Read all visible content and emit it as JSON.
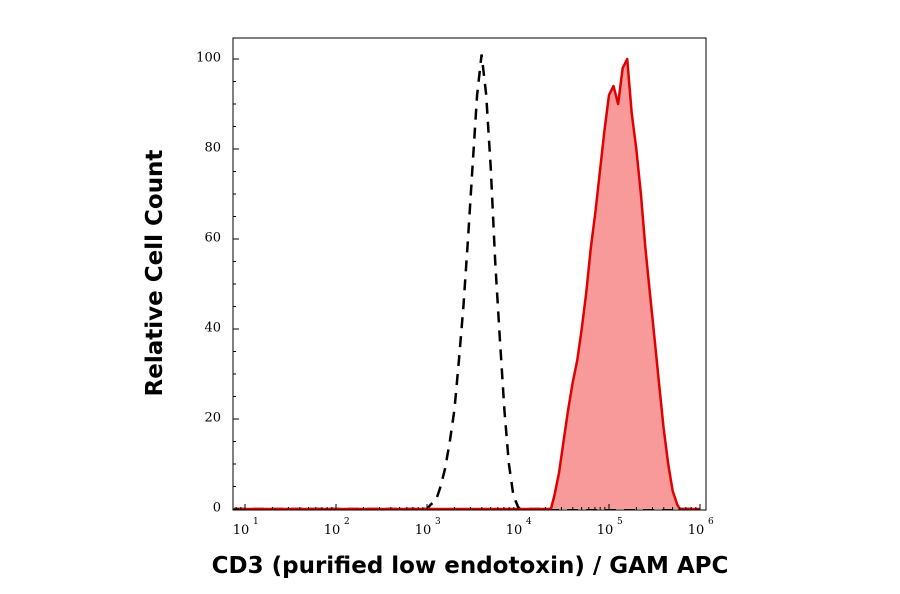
{
  "chart_data": {
    "type": "area",
    "xlabel": "CD3 (purified low endotoxin) / GAM APC",
    "ylabel": "Relative Cell Count",
    "x_scale": "log",
    "xlim": [
      1,
      1000000
    ],
    "ylim": [
      0,
      100
    ],
    "x_ticks": [
      {
        "value": 10,
        "base": "10",
        "exp": "1"
      },
      {
        "value": 100,
        "base": "10",
        "exp": "2"
      },
      {
        "value": 1000,
        "base": "10",
        "exp": "3"
      },
      {
        "value": 10000,
        "base": "10",
        "exp": "4"
      },
      {
        "value": 100000,
        "base": "10",
        "exp": "5"
      },
      {
        "value": 1000000,
        "base": "10",
        "exp": "6"
      }
    ],
    "y_ticks": [
      "0",
      "20",
      "40",
      "60",
      "80",
      "100"
    ],
    "grid": false,
    "series": [
      {
        "style": "dashed",
        "color": "#000000",
        "x": [
          1,
          1000,
          1100,
          1260,
          1410,
          1580,
          1780,
          2000,
          2240,
          2510,
          2820,
          3160,
          3550,
          3980,
          4470,
          5010,
          5620,
          6310,
          7080,
          7940,
          8910,
          10000,
          10500,
          1000000
        ],
        "y": [
          0,
          0,
          1,
          2,
          5,
          9,
          15,
          22,
          33,
          45,
          60,
          76,
          92,
          101,
          92,
          76,
          55,
          38,
          22,
          10,
          3,
          0.5,
          0,
          0
        ]
      },
      {
        "style": "filled",
        "color": "#e00000",
        "fill": "#f99a9a",
        "x": [
          1,
          23000,
          25100,
          28200,
          31600,
          35500,
          39800,
          44700,
          50100,
          56200,
          63100,
          70800,
          79400,
          89100,
          100000,
          112200,
          125900,
          141300,
          158500,
          177800,
          199500,
          223900,
          251200,
          281800,
          316200,
          354800,
          398100,
          446700,
          501200,
          562300,
          600000,
          1000000
        ],
        "y": [
          0,
          0,
          3,
          8,
          15,
          22,
          28,
          33,
          40,
          48,
          58,
          66,
          75,
          84,
          92,
          94,
          90,
          98,
          100,
          88,
          80,
          70,
          58,
          48,
          38,
          28,
          18,
          10,
          4,
          1,
          0,
          0
        ]
      }
    ]
  }
}
